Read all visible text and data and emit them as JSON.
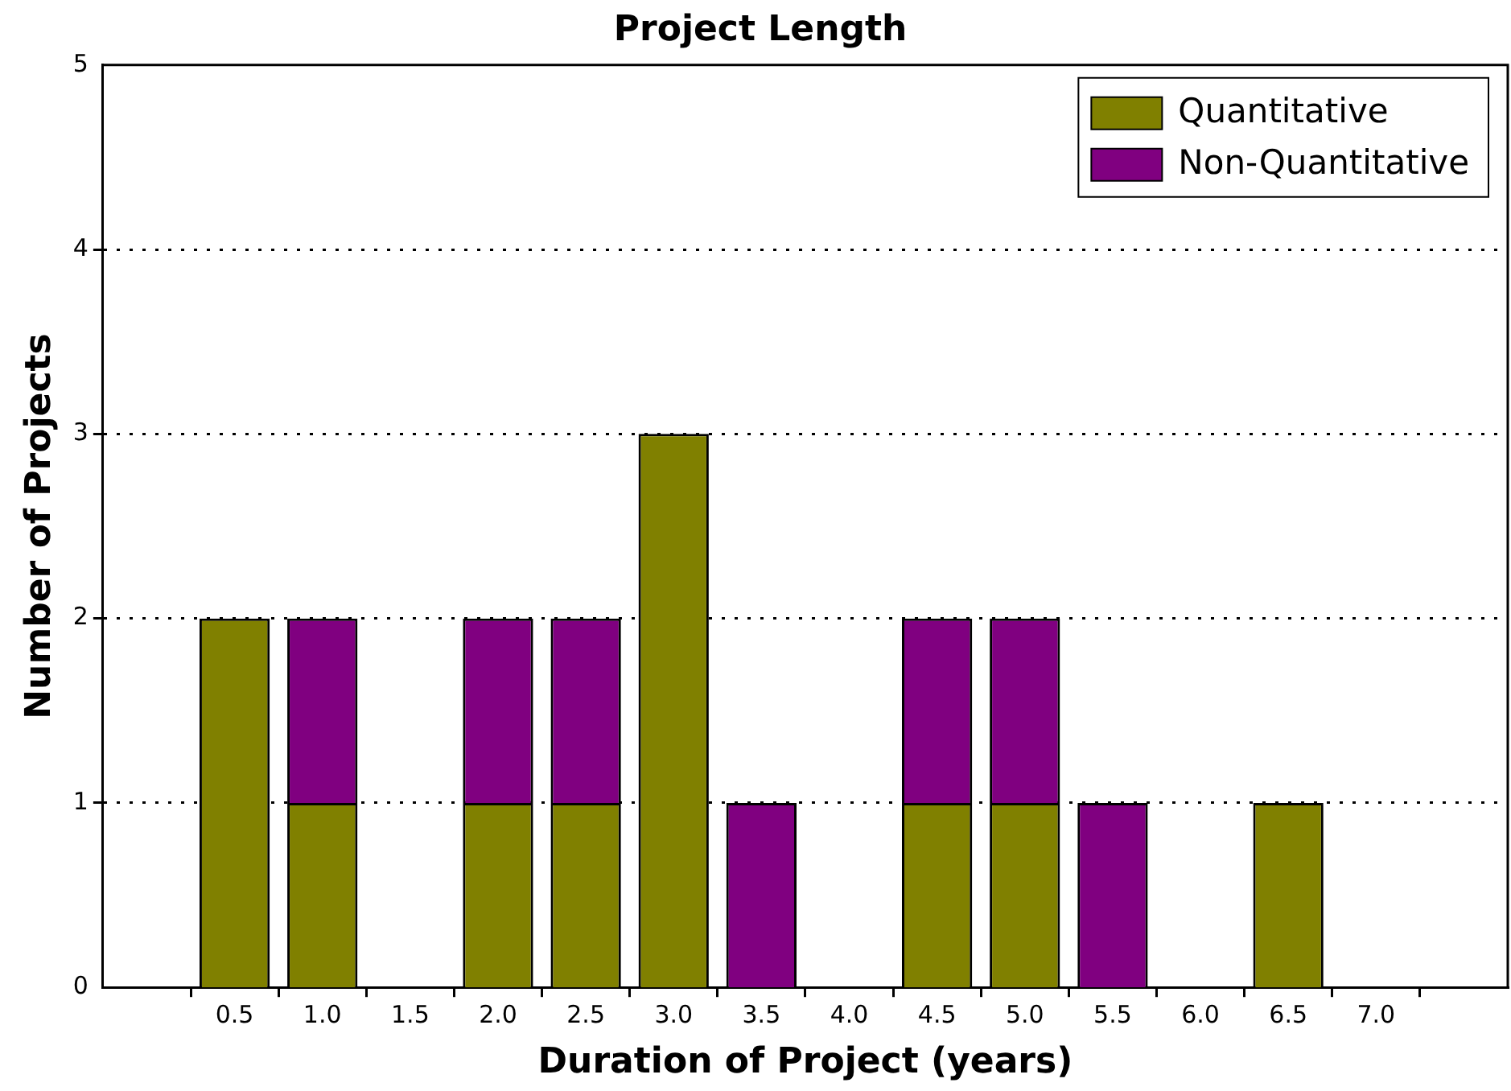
{
  "chart_data": {
    "type": "bar",
    "title": "Project Length",
    "xlabel": "Duration of Project (years)",
    "ylabel": "Number of Projects",
    "x": [
      0.5,
      1.0,
      1.5,
      2.0,
      2.5,
      3.0,
      3.5,
      4.0,
      4.5,
      5.0,
      5.5,
      6.0,
      6.5,
      7.0
    ],
    "series": [
      {
        "name": "Quantitative",
        "color": "#808000",
        "values": [
          2,
          1,
          0,
          1,
          1,
          3,
          0,
          0,
          1,
          1,
          0,
          0,
          1,
          0
        ]
      },
      {
        "name": "Non-Quantitative",
        "color": "#800080",
        "values": [
          0,
          1,
          0,
          1,
          1,
          0,
          1,
          0,
          1,
          1,
          1,
          0,
          0,
          0
        ]
      }
    ],
    "stacked": true,
    "xlim": [
      -0.25,
      7.75
    ],
    "xticks": [
      {
        "value": 0.5,
        "label": "0.5"
      },
      {
        "value": 1,
        "label": "1.0"
      },
      {
        "value": 1.5,
        "label": "1.5"
      },
      {
        "value": 2,
        "label": "2.0"
      },
      {
        "value": 2.5,
        "label": "2.5"
      },
      {
        "value": 3,
        "label": "3.0"
      },
      {
        "value": 3.5,
        "label": "3.5"
      },
      {
        "value": 4,
        "label": "4.0"
      },
      {
        "value": 4.5,
        "label": "4.5"
      },
      {
        "value": 5,
        "label": "5.0"
      },
      {
        "value": 5.5,
        "label": "5.5"
      },
      {
        "value": 6,
        "label": "6.0"
      },
      {
        "value": 6.5,
        "label": "6.5"
      },
      {
        "value": 7,
        "label": "7.0"
      }
    ],
    "ylim": [
      0,
      5
    ],
    "yticks": [
      0,
      1,
      2,
      3,
      4,
      5
    ],
    "grid": "y",
    "line_style": "dotted",
    "legend": "top right"
  }
}
